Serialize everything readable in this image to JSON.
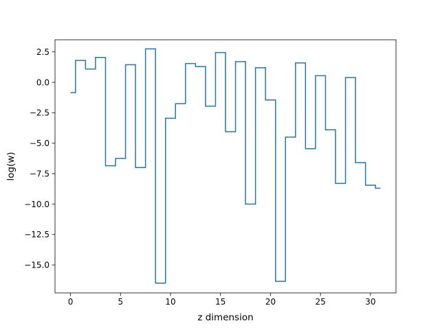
{
  "chart_data": {
    "type": "line",
    "drawstyle": "steps-mid",
    "xlabel": "z dimension",
    "ylabel": "log(w)",
    "xlim": [
      -1.55,
      32.55
    ],
    "ylim": [
      -17.3,
      3.5
    ],
    "xticks": [
      0,
      5,
      10,
      15,
      20,
      25,
      30
    ],
    "yticks": [
      2.5,
      0.0,
      -2.5,
      -5.0,
      -7.5,
      -10.0,
      -12.5,
      -15.0
    ],
    "xtick_labels": [
      "0",
      "5",
      "10",
      "15",
      "20",
      "25",
      "30"
    ],
    "ytick_labels": [
      "2.5",
      "0.0",
      "−2.5",
      "−5.0",
      "−7.5",
      "−10.0",
      "−12.5",
      "−15.0"
    ],
    "grid": false,
    "series": [
      {
        "color": "#1f77b4",
        "x": [
          0,
          1,
          2,
          3,
          4,
          5,
          6,
          7,
          8,
          9,
          10,
          11,
          12,
          13,
          14,
          15,
          16,
          17,
          18,
          19,
          20,
          21,
          22,
          23,
          24,
          25,
          26,
          27,
          28,
          29,
          30,
          31
        ],
        "y": [
          -0.85,
          1.8,
          1.1,
          2.05,
          -6.85,
          -6.25,
          1.45,
          -7.0,
          2.75,
          -16.5,
          -2.95,
          -1.75,
          1.55,
          1.3,
          -1.95,
          2.45,
          -4.05,
          1.7,
          -10.0,
          1.2,
          -1.45,
          -16.35,
          -4.5,
          1.6,
          -5.45,
          0.55,
          -3.9,
          -8.3,
          0.4,
          -6.6,
          -8.45,
          -8.7
        ]
      }
    ]
  }
}
